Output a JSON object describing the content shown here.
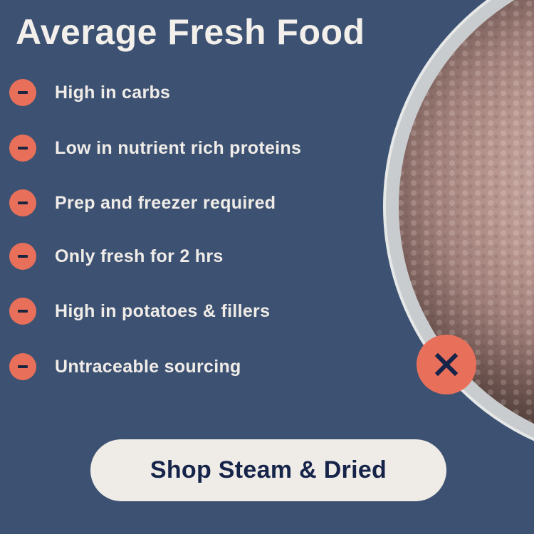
{
  "title": "Average Fresh Food",
  "items": [
    {
      "label": "High in carbs",
      "icon": "minus-icon"
    },
    {
      "label": "Low in nutrient rich proteins",
      "icon": "minus-icon"
    },
    {
      "label": "Prep and freezer required",
      "icon": "minus-icon"
    },
    {
      "label": "Only fresh for 2 hrs",
      "icon": "minus-icon"
    },
    {
      "label": "High in potatoes & fillers",
      "icon": "minus-icon"
    },
    {
      "label": "Untraceable sourcing",
      "icon": "minus-icon"
    }
  ],
  "badge_icon": "x-icon",
  "cta_label": "Shop Steam & Dried",
  "colors": {
    "background": "#3d5272",
    "accent": "#e8705a",
    "text": "#f0ece8",
    "button": "#efebe7",
    "button_text": "#16244a"
  }
}
